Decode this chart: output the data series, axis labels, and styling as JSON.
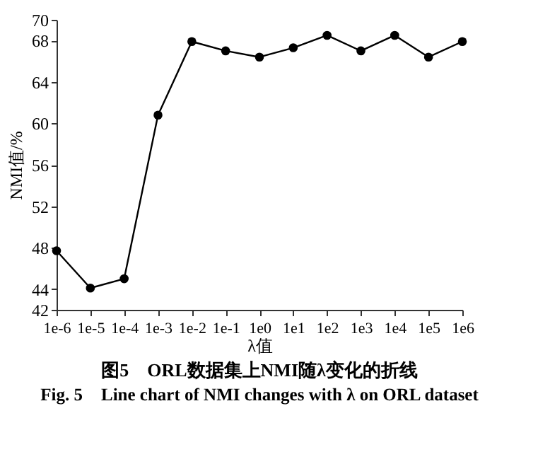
{
  "chart_data": {
    "type": "line",
    "title": "图5　ORL数据集上NMI随λ变化的折线",
    "subtitle": "Fig. 5　Line chart of NMI changes with λ on ORL dataset",
    "xlabel": "λ值",
    "ylabel": "NMI值/%",
    "categories": [
      "1e-6",
      "1e-5",
      "1e-4",
      "1e-3",
      "1e-2",
      "1e-1",
      "1e0",
      "1e1",
      "1e2",
      "1e3",
      "1e4",
      "1e5",
      "1e6"
    ],
    "series": [
      {
        "color": "#000000",
        "values": [
          47.7,
          44.1,
          45.0,
          60.8,
          67.9,
          67.0,
          66.4,
          67.3,
          68.5,
          67.0,
          68.5,
          66.4,
          67.9
        ]
      }
    ],
    "ylim": [
      42,
      70
    ],
    "yticks": [
      42,
      44,
      48,
      52,
      56,
      60,
      64,
      68,
      70
    ],
    "grid": false,
    "legend": false,
    "marker": "circle",
    "line_style": "solid"
  }
}
